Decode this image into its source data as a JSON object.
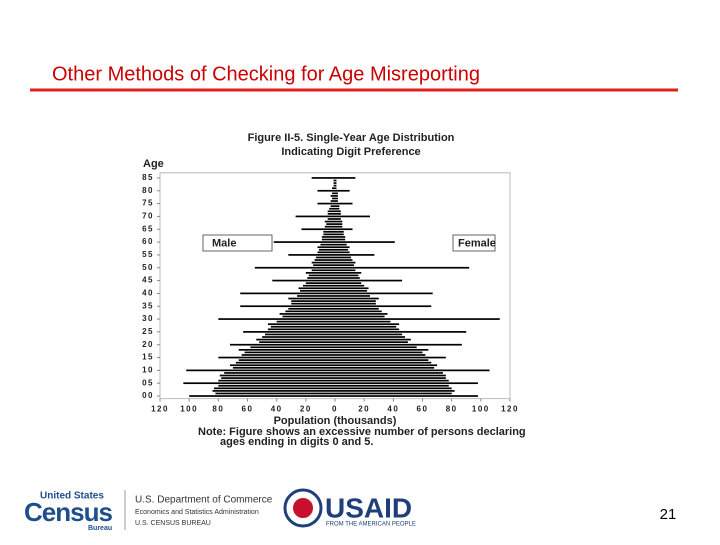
{
  "slide_title": "Other Methods of Checking for Age Misreporting",
  "page_number": "21",
  "footer": {
    "census_top": "United States",
    "census_main": "Census",
    "census_sub": "Bureau",
    "commerce_1": "U.S. Department of Commerce",
    "commerce_2": "Economics and Statistics Administration",
    "commerce_3": "U.S. CENSUS BUREAU",
    "usaid": "USAID",
    "usaid_sub": "FROM THE AMERICAN PEOPLE"
  },
  "chart_data": {
    "type": "pyramid",
    "title": [
      "Figure II-5.  Single-Year Age Distribution",
      "Indicating Digit Preference"
    ],
    "y_label": "Age",
    "x_label": "Population (thousands)",
    "note": [
      "Note:  Figure shows an excessive number of persons declaring",
      "ages ending in digits 0 and 5."
    ],
    "y": [
      0,
      1,
      2,
      3,
      4,
      5,
      6,
      7,
      8,
      9,
      10,
      11,
      12,
      13,
      14,
      15,
      16,
      17,
      18,
      19,
      20,
      21,
      22,
      23,
      24,
      25,
      26,
      27,
      28,
      29,
      30,
      31,
      32,
      33,
      34,
      35,
      36,
      37,
      38,
      39,
      40,
      41,
      42,
      43,
      44,
      45,
      46,
      47,
      48,
      49,
      50,
      51,
      52,
      53,
      54,
      55,
      56,
      57,
      58,
      59,
      60,
      61,
      62,
      63,
      64,
      65,
      66,
      67,
      68,
      69,
      70,
      71,
      72,
      73,
      74,
      75,
      76,
      77,
      78,
      79,
      80,
      81,
      82,
      83,
      84,
      85
    ],
    "series": [
      {
        "name": "Male",
        "color": "#000000",
        "side": "left",
        "values": [
          100,
          82,
          84,
          83,
          80,
          104,
          80,
          78,
          79,
          76,
          102,
          70,
          72,
          68,
          66,
          80,
          64,
          62,
          66,
          58,
          72,
          52,
          54,
          50,
          48,
          63,
          46,
          44,
          46,
          40,
          80,
          36,
          38,
          34,
          32,
          65,
          30,
          30,
          32,
          26,
          65,
          24,
          25,
          22,
          20,
          43,
          19,
          18,
          20,
          16,
          55,
          15,
          16,
          14,
          13,
          32,
          12,
          11,
          12,
          10,
          42,
          9,
          9,
          8,
          8,
          23,
          7,
          6,
          7,
          5,
          27,
          5,
          5,
          4,
          3,
          12,
          3,
          2,
          3,
          2,
          12,
          2,
          1,
          1,
          1,
          16
        ]
      },
      {
        "name": "Female",
        "color": "#000000",
        "side": "right",
        "values": [
          98,
          80,
          82,
          80,
          78,
          98,
          78,
          76,
          76,
          74,
          106,
          68,
          70,
          66,
          64,
          76,
          62,
          60,
          64,
          56,
          87,
          50,
          52,
          48,
          46,
          90,
          44,
          42,
          44,
          38,
          113,
          34,
          36,
          32,
          30,
          66,
          28,
          28,
          30,
          24,
          67,
          22,
          23,
          20,
          18,
          46,
          17,
          16,
          18,
          14,
          92,
          13,
          14,
          12,
          11,
          27,
          10,
          9,
          10,
          8,
          41,
          7,
          7,
          6,
          6,
          12,
          5,
          5,
          5,
          4,
          24,
          4,
          4,
          3,
          3,
          12,
          2,
          2,
          2,
          2,
          10,
          1,
          1,
          1,
          1,
          14
        ]
      }
    ],
    "xlim": [
      -120,
      120
    ],
    "xticks": [
      {
        "value": -120,
        "label": "120"
      },
      {
        "value": -100,
        "label": "100"
      },
      {
        "value": -80,
        "label": "80"
      },
      {
        "value": -60,
        "label": "60"
      },
      {
        "value": -40,
        "label": "40"
      },
      {
        "value": -20,
        "label": "20"
      },
      0,
      20,
      40,
      60,
      80,
      100,
      120
    ],
    "ylim": [
      -1,
      87
    ],
    "yticks": [
      {
        "value": 0,
        "label": "00"
      },
      {
        "value": 5,
        "label": "05"
      },
      10,
      15,
      20,
      25,
      30,
      35,
      40,
      45,
      50,
      55,
      60,
      65,
      70,
      75,
      80,
      85
    ]
  }
}
